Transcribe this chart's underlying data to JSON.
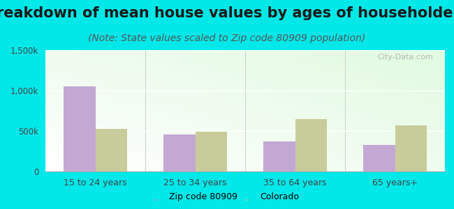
{
  "title": "Breakdown of mean house values by ages of householders",
  "subtitle": "(Note: State values scaled to Zip code 80909 population)",
  "categories": [
    "15 to 24 years",
    "25 to 34 years",
    "35 to 64 years",
    "65 years+"
  ],
  "zip_values": [
    1050000,
    460000,
    370000,
    330000
  ],
  "colorado_values": [
    530000,
    490000,
    650000,
    570000
  ],
  "zip_color": "#c4a8d4",
  "colorado_color": "#c8cc9a",
  "background_color": "#00e8e8",
  "ylim": [
    0,
    1500000
  ],
  "yticks": [
    0,
    500000,
    1000000,
    1500000
  ],
  "ytick_labels": [
    "0",
    "500k",
    "1,000k",
    "1,500k"
  ],
  "legend_zip": "Zip code 80909",
  "legend_colorado": "Colorado",
  "title_fontsize": 15,
  "subtitle_fontsize": 10,
  "bar_width": 0.32
}
